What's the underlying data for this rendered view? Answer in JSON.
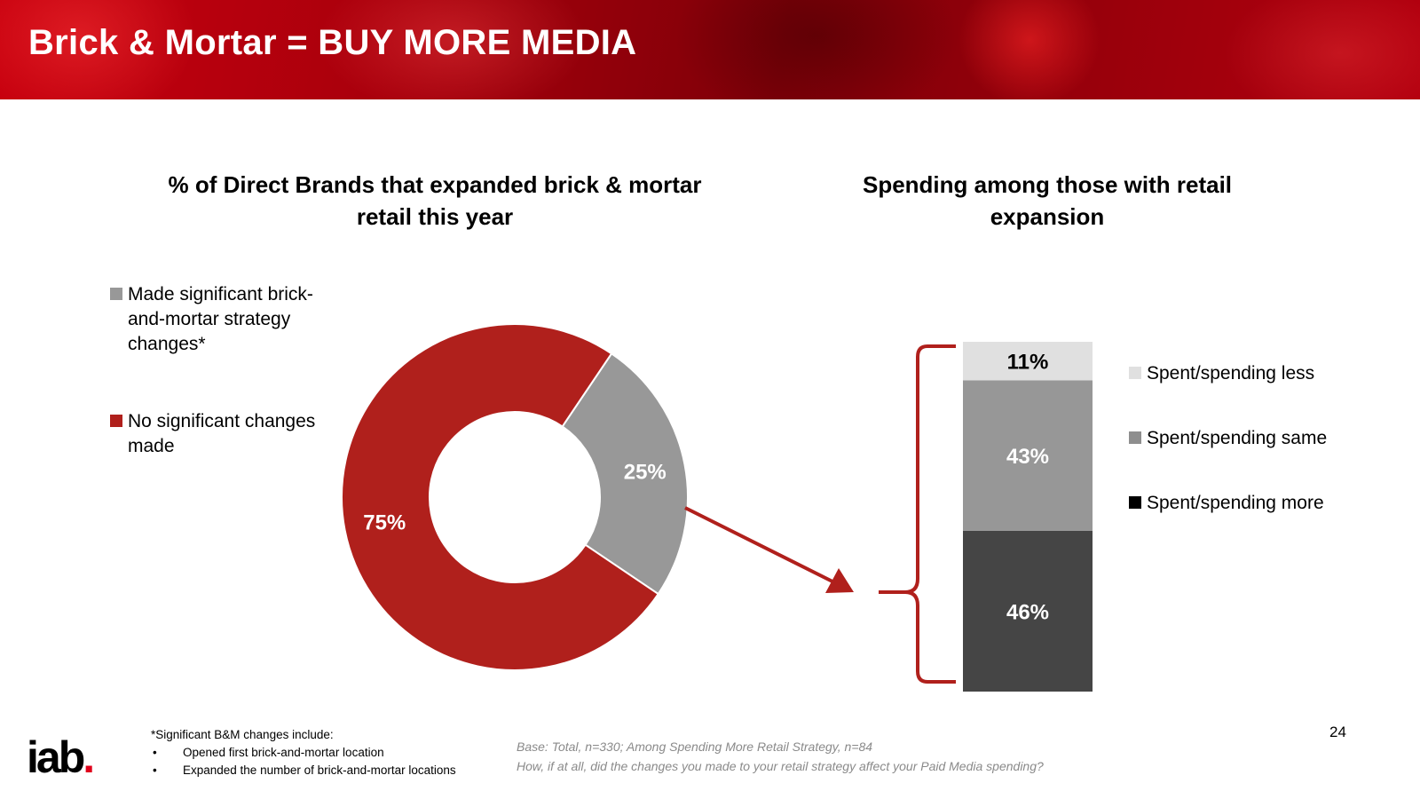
{
  "header": {
    "title": "Brick & Mortar = BUY MORE MEDIA"
  },
  "colors": {
    "red": "#b0201c",
    "gray": "#989898",
    "light_gray": "#e0e0e0",
    "dark_gray": "#454545",
    "black": "#000000"
  },
  "chart_data": [
    {
      "type": "pie",
      "variant": "donut",
      "title": "% of Direct Brands that expanded brick & mortar retail this year",
      "categories": [
        "Made significant brick-and-mortar strategy changes*",
        "No significant changes made"
      ],
      "values": [
        25,
        75
      ],
      "data_labels": [
        "25%",
        "75%"
      ],
      "legend_labels": [
        "Made significant brick-and-mortar strategy changes*",
        "No significant changes made"
      ],
      "legend_position": "left"
    },
    {
      "type": "bar",
      "variant": "100% stacked",
      "title": "Spending among those with retail expansion",
      "categories": [
        ""
      ],
      "series": [
        {
          "name": "Spent/spending more",
          "values": [
            46
          ],
          "label": "46%"
        },
        {
          "name": "Spent/spending same",
          "values": [
            43
          ],
          "label": "43%"
        },
        {
          "name": "Spent/spending less",
          "values": [
            11
          ],
          "label": "11%"
        }
      ],
      "ylim": [
        0,
        100
      ],
      "legend_position": "right"
    }
  ],
  "footnote": {
    "heading": "*Significant B&M changes include:",
    "bullets": [
      "Opened first brick-and-mortar location",
      "Expanded the number of brick-and-mortar locations"
    ]
  },
  "base_note": {
    "line1": "Base: Total, n=330; Among Spending More Retail Strategy, n=84",
    "line2": "How, if at all, did the changes you made to your retail strategy affect your Paid Media spending?"
  },
  "page_number": "24",
  "logo": {
    "text": "iab",
    "dot": "."
  }
}
